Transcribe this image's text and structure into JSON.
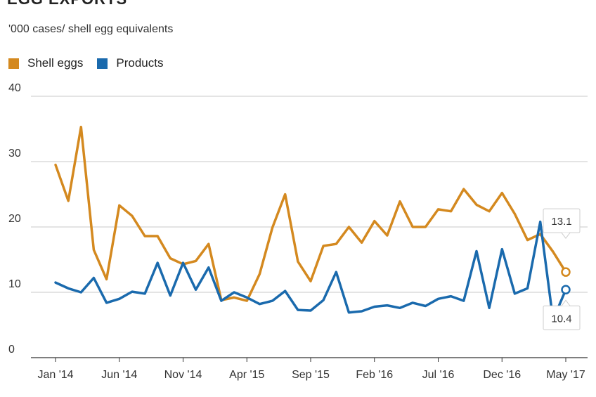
{
  "header": {
    "title": "EGG EXPORTS",
    "subtitle": "'000 cases/ shell egg equivalents"
  },
  "colors": {
    "shell": "#d4891f",
    "products": "#1a6aad",
    "grid": "#c8c8c8",
    "axis": "#333333"
  },
  "chart_data": {
    "type": "line",
    "title": "EGG EXPORTS",
    "subtitle": "'000 cases/ shell egg equivalents",
    "ylim": [
      0,
      40
    ],
    "yticks": [
      0,
      10,
      20,
      30,
      40
    ],
    "xtick_labels": [
      "Jan '14",
      "Jun '14",
      "Nov '14",
      "Apr '15",
      "Sep '15",
      "Feb '16",
      "Jul '16",
      "Dec '16",
      "May '17"
    ],
    "x": [
      "Jan '14",
      "Feb '14",
      "Mar '14",
      "Apr '14",
      "May '14",
      "Jun '14",
      "Jul '14",
      "Aug '14",
      "Sep '14",
      "Oct '14",
      "Nov '14",
      "Dec '14",
      "Jan '15",
      "Feb '15",
      "Mar '15",
      "Apr '15",
      "May '15",
      "Jun '15",
      "Jul '15",
      "Aug '15",
      "Sep '15",
      "Oct '15",
      "Nov '15",
      "Dec '15",
      "Jan '16",
      "Feb '16",
      "Mar '16",
      "Apr '16",
      "May '16",
      "Jun '16",
      "Jul '16",
      "Aug '16",
      "Sep '16",
      "Oct '16",
      "Nov '16",
      "Dec '16",
      "Jan '17",
      "Feb '17",
      "Mar '17",
      "Apr '17",
      "May '17"
    ],
    "grid": true,
    "legend_position": "top-left",
    "series": [
      {
        "name": "Shell eggs",
        "color": "#d4891f",
        "values": [
          29.5,
          24.0,
          35.3,
          16.5,
          12.0,
          23.3,
          21.7,
          18.6,
          18.6,
          15.2,
          14.3,
          14.8,
          17.4,
          8.8,
          9.2,
          8.7,
          12.8,
          19.9,
          25.0,
          14.7,
          11.7,
          17.1,
          17.4,
          20.0,
          17.6,
          20.9,
          18.7,
          23.9,
          20.0,
          20.0,
          22.7,
          22.4,
          25.8,
          23.4,
          22.4,
          25.2,
          22.0,
          18.0,
          18.9,
          16.2,
          13.1
        ]
      },
      {
        "name": "Products",
        "color": "#1a6aad",
        "values": [
          11.5,
          10.6,
          10.0,
          12.2,
          8.4,
          9.0,
          10.1,
          9.8,
          14.5,
          9.5,
          14.5,
          10.4,
          13.8,
          8.7,
          10.0,
          9.2,
          8.2,
          8.7,
          10.2,
          7.3,
          7.2,
          8.8,
          13.1,
          6.9,
          7.1,
          7.8,
          8.0,
          7.6,
          8.4,
          7.9,
          9.0,
          9.4,
          8.7,
          16.3,
          7.6,
          16.6,
          9.8,
          10.6,
          20.8,
          5.8,
          10.4
        ]
      }
    ],
    "callouts": [
      {
        "series": "Shell eggs",
        "label": "13.1"
      },
      {
        "series": "Products",
        "label": "10.4"
      }
    ]
  }
}
